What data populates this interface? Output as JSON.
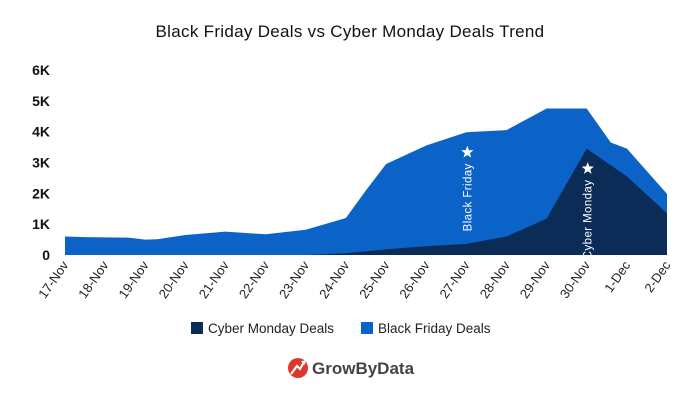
{
  "chart_data": {
    "type": "area",
    "title": "Black Friday Deals vs Cyber Monday Deals Trend",
    "xlabel": "",
    "ylabel": "",
    "x": [
      "17-Nov",
      "18-Nov",
      "19-Nov",
      "20-Nov",
      "21-Nov",
      "22-Nov",
      "23-Nov",
      "24-Nov",
      "25-Nov",
      "26-Nov",
      "27-Nov",
      "28-Nov",
      "29-Nov",
      "30-Nov",
      "1-Dec",
      "2-Dec"
    ],
    "x_ticks": [
      "17-Nov",
      "18-Nov",
      "19-Nov",
      "20-Nov",
      "21-Nov",
      "22-Nov",
      "23-Nov",
      "24-Nov",
      "25-Nov",
      "26-Nov",
      "27-Nov",
      "28-Nov",
      "29-Nov",
      "30-Nov",
      "1-Dec",
      "2-Dec"
    ],
    "y_ticks": [
      "0",
      "1K",
      "2K",
      "3K",
      "4K",
      "5K",
      "6K"
    ],
    "ylim": [
      0,
      6000
    ],
    "grid": false,
    "legend_position": "bottom",
    "series": [
      {
        "name": "Black Friday Deals",
        "color": "#0c63c7",
        "points": [
          [
            "17-Nov",
            600
          ],
          [
            "17-Nov+0.5",
            580
          ],
          [
            "18-Nov",
            570
          ],
          [
            "18-Nov+0.6",
            560
          ],
          [
            "19-Nov",
            500
          ],
          [
            "19-Nov+0.3",
            510
          ],
          [
            "20-Nov",
            650
          ],
          [
            "21-Nov",
            760
          ],
          [
            "22-Nov",
            670
          ],
          [
            "23-Nov",
            820
          ],
          [
            "24-Nov",
            1200
          ],
          [
            "24-Nov+0.5",
            2100
          ],
          [
            "25-Nov",
            2950
          ],
          [
            "26-Nov",
            3550
          ],
          [
            "27-Nov",
            3980
          ],
          [
            "28-Nov",
            4050
          ],
          [
            "29-Nov",
            4750
          ],
          [
            "30-Nov",
            4750
          ],
          [
            "30-Nov+0.6",
            3650
          ],
          [
            "1-Dec",
            3450
          ],
          [
            "2-Dec",
            1980
          ]
        ]
      },
      {
        "name": "Cyber Monday Deals",
        "color": "#0b2c56",
        "points": [
          [
            "22-Nov",
            0
          ],
          [
            "23-Nov",
            0
          ],
          [
            "24-Nov",
            60
          ],
          [
            "25-Nov",
            180
          ],
          [
            "26-Nov",
            290
          ],
          [
            "27-Nov",
            360
          ],
          [
            "28-Nov",
            600
          ],
          [
            "29-Nov",
            1180
          ],
          [
            "30-Nov",
            3450
          ],
          [
            "1-Dec",
            2550
          ],
          [
            "2-Dec",
            1350
          ]
        ]
      }
    ],
    "annotations": [
      {
        "text": "Black Friday",
        "x": "27-Nov",
        "marker": "star"
      },
      {
        "text": "Cyber Monday",
        "x": "30-Nov",
        "marker": "star"
      }
    ]
  },
  "legend": {
    "items": [
      {
        "label": "Cyber Monday Deals",
        "color": "#0b2c56"
      },
      {
        "label": "Black Friday Deals",
        "color": "#0c63c7"
      }
    ]
  },
  "brand": {
    "name": "GrowByData",
    "logo_color": "#d93a2b",
    "icon": "growth-arrow-icon"
  }
}
